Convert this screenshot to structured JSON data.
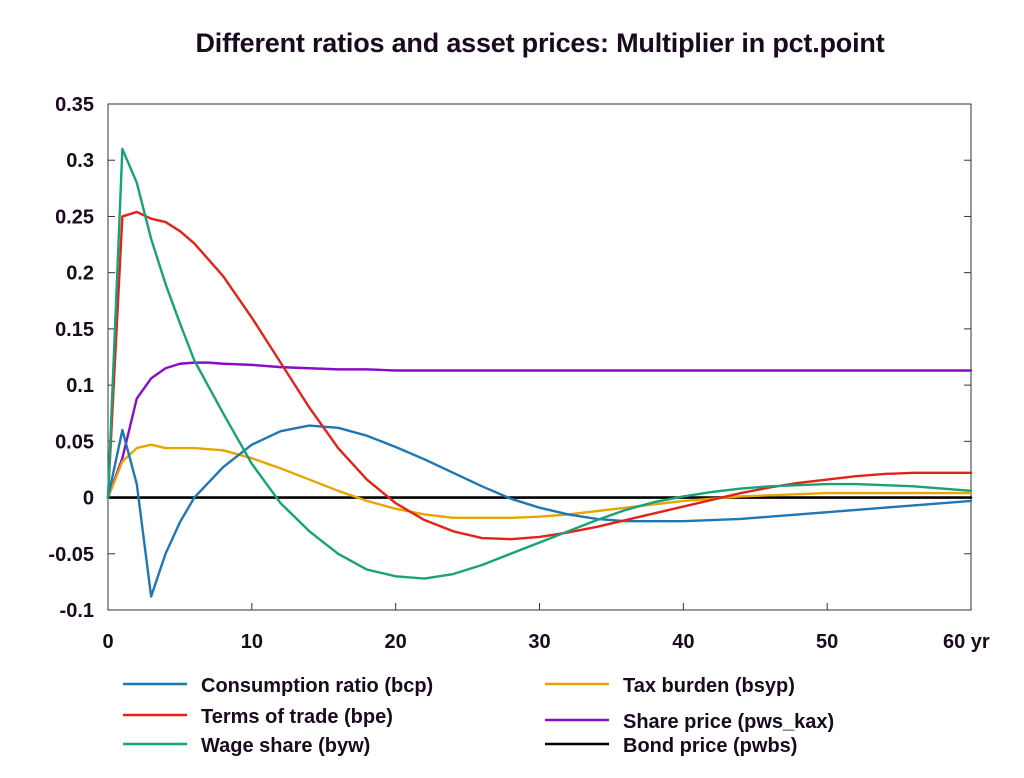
{
  "chart_data": {
    "type": "line",
    "title": "Different ratios and asset prices: Multiplier in pct.point",
    "xlabel": "",
    "ylabel": "",
    "x_unit_label": "yr",
    "xlim": [
      0,
      60
    ],
    "ylim": [
      -0.1,
      0.35
    ],
    "x_ticks": [
      0,
      10,
      20,
      30,
      40,
      50,
      60
    ],
    "x_tick_labels": [
      "0",
      "10",
      "20",
      "30",
      "40",
      "50",
      "60 yr"
    ],
    "y_ticks": [
      -0.1,
      -0.05,
      0,
      0.05,
      0.1,
      0.15,
      0.2,
      0.25,
      0.3,
      0.35
    ],
    "y_tick_labels": [
      "-0.1",
      "-0.05",
      "0",
      "0.05",
      "0.1",
      "0.15",
      "0.2",
      "0.25",
      "0.3",
      "0.35"
    ],
    "grid": false,
    "legend_position": "bottom",
    "series": [
      {
        "name": "Consumption ratio (bcp)",
        "color": "#1f77b4",
        "x": [
          0,
          1,
          2,
          3,
          4,
          5,
          6,
          8,
          10,
          12,
          14,
          16,
          18,
          20,
          22,
          24,
          26,
          28,
          30,
          32,
          34,
          36,
          38,
          40,
          42,
          44,
          46,
          48,
          50,
          52,
          54,
          56,
          58,
          60
        ],
        "y": [
          0,
          0.06,
          0.012,
          -0.088,
          -0.05,
          -0.022,
          0.0,
          0.027,
          0.047,
          0.059,
          0.064,
          0.062,
          0.055,
          0.045,
          0.034,
          0.022,
          0.01,
          -0.001,
          -0.009,
          -0.015,
          -0.019,
          -0.021,
          -0.021,
          -0.021,
          -0.02,
          -0.019,
          -0.017,
          -0.015,
          -0.013,
          -0.011,
          -0.009,
          -0.007,
          -0.005,
          -0.003
        ]
      },
      {
        "name": "Terms of trade (bpe)",
        "color": "#e2231a",
        "x": [
          0,
          1,
          2,
          3,
          4,
          5,
          6,
          8,
          10,
          12,
          14,
          16,
          18,
          20,
          22,
          24,
          26,
          28,
          30,
          32,
          34,
          36,
          38,
          40,
          42,
          44,
          46,
          48,
          50,
          52,
          54,
          56,
          58,
          60
        ],
        "y": [
          0,
          0.25,
          0.254,
          0.248,
          0.245,
          0.237,
          0.226,
          0.197,
          0.16,
          0.12,
          0.08,
          0.044,
          0.016,
          -0.005,
          -0.02,
          -0.03,
          -0.036,
          -0.037,
          -0.035,
          -0.031,
          -0.026,
          -0.02,
          -0.014,
          -0.008,
          -0.002,
          0.004,
          0.009,
          0.013,
          0.016,
          0.019,
          0.021,
          0.022,
          0.022,
          0.022
        ]
      },
      {
        "name": "Wage share (byw)",
        "color": "#17a27a",
        "x": [
          0,
          1,
          2,
          3,
          4,
          5,
          6,
          8,
          10,
          12,
          14,
          16,
          18,
          20,
          22,
          24,
          26,
          28,
          30,
          32,
          34,
          36,
          38,
          40,
          42,
          44,
          46,
          48,
          50,
          52,
          54,
          56,
          58,
          60
        ],
        "y": [
          0,
          0.31,
          0.28,
          0.23,
          0.19,
          0.155,
          0.122,
          0.075,
          0.03,
          -0.005,
          -0.03,
          -0.05,
          -0.064,
          -0.07,
          -0.072,
          -0.068,
          -0.06,
          -0.05,
          -0.04,
          -0.03,
          -0.02,
          -0.011,
          -0.004,
          0.001,
          0.005,
          0.008,
          0.01,
          0.011,
          0.012,
          0.012,
          0.011,
          0.01,
          0.008,
          0.006
        ]
      },
      {
        "name": "Tax burden (bsyp)",
        "color": "#e8a400",
        "x": [
          0,
          1,
          2,
          3,
          4,
          5,
          6,
          8,
          10,
          12,
          14,
          16,
          18,
          20,
          22,
          24,
          26,
          28,
          30,
          32,
          34,
          36,
          38,
          40,
          42,
          44,
          46,
          48,
          50,
          52,
          54,
          56,
          58,
          60
        ],
        "y": [
          0,
          0.032,
          0.044,
          0.047,
          0.044,
          0.044,
          0.044,
          0.042,
          0.035,
          0.026,
          0.016,
          0.006,
          -0.003,
          -0.01,
          -0.015,
          -0.018,
          -0.018,
          -0.018,
          -0.017,
          -0.015,
          -0.012,
          -0.009,
          -0.006,
          -0.003,
          -0.001,
          0.001,
          0.002,
          0.003,
          0.004,
          0.004,
          0.004,
          0.004,
          0.004,
          0.004
        ]
      },
      {
        "name": "Share price (pws_kax)",
        "color": "#8b0cc8",
        "x": [
          0,
          1,
          2,
          3,
          4,
          5,
          6,
          7,
          8,
          10,
          12,
          14,
          16,
          18,
          20,
          25,
          30,
          35,
          40,
          45,
          50,
          55,
          60
        ],
        "y": [
          0,
          0.035,
          0.088,
          0.106,
          0.115,
          0.119,
          0.12,
          0.12,
          0.119,
          0.118,
          0.116,
          0.115,
          0.114,
          0.114,
          0.113,
          0.113,
          0.113,
          0.113,
          0.113,
          0.113,
          0.113,
          0.113,
          0.113
        ]
      },
      {
        "name": "Bond price (pwbs)",
        "color": "#000000",
        "x": [
          0,
          60
        ],
        "y": [
          0,
          0
        ]
      }
    ]
  }
}
